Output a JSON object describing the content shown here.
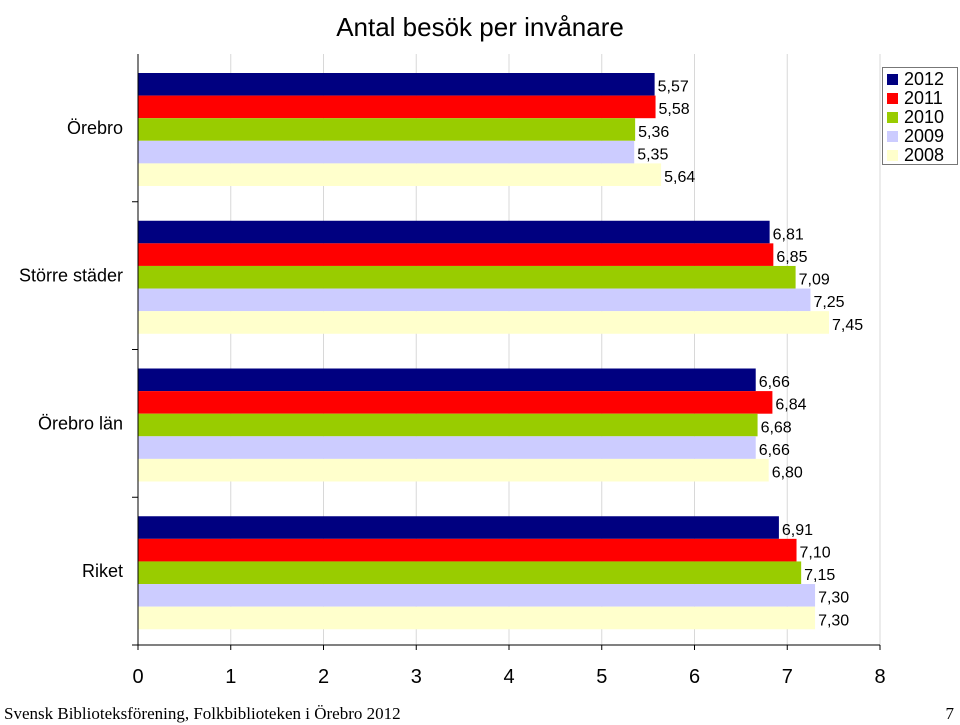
{
  "chart_data": {
    "type": "bar",
    "orientation": "horizontal",
    "title": "Antal besök per invånare",
    "categories": [
      "Örebro",
      "Större städer",
      "Örebro län",
      "Riket"
    ],
    "series": [
      {
        "name": "2012",
        "color": "#000080",
        "values": [
          5.57,
          6.81,
          6.66,
          6.91
        ],
        "labels": [
          "5,57",
          "6,81",
          "6,66",
          "6,91"
        ]
      },
      {
        "name": "2011",
        "color": "#ff0000",
        "values": [
          5.58,
          6.85,
          6.84,
          7.1
        ],
        "labels": [
          "5,58",
          "6,85",
          "6,84",
          "7,10"
        ]
      },
      {
        "name": "2010",
        "color": "#99cc00",
        "values": [
          5.36,
          7.09,
          6.68,
          7.15
        ],
        "labels": [
          "5,36",
          "7,09",
          "6,68",
          "7,15"
        ]
      },
      {
        "name": "2009",
        "color": "#ccccff",
        "values": [
          5.35,
          7.25,
          6.66,
          7.3
        ],
        "labels": [
          "5,35",
          "7,25",
          "6,66",
          "7,30"
        ]
      },
      {
        "name": "2008",
        "color": "#ffffcc",
        "values": [
          5.64,
          7.45,
          6.8,
          7.3
        ],
        "labels": [
          "5,64",
          "7,45",
          "6,80",
          "7,30"
        ]
      }
    ],
    "xlim": [
      0,
      8
    ],
    "xticks": [
      "0",
      "1",
      "2",
      "3",
      "4",
      "5",
      "6",
      "7",
      "8"
    ],
    "grid": true,
    "legend_position": "top-right"
  },
  "footer": {
    "left": "Svensk Biblioteksförening, Folkbiblioteken i Örebro 2012",
    "page_number": "7"
  }
}
